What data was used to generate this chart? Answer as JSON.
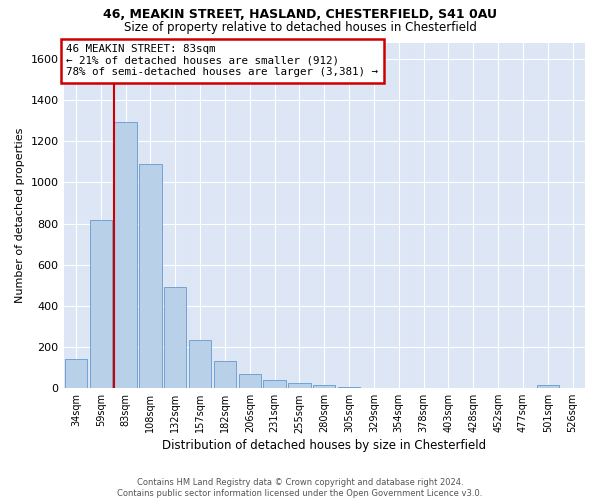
{
  "title1": "46, MEAKIN STREET, HASLAND, CHESTERFIELD, S41 0AU",
  "title2": "Size of property relative to detached houses in Chesterfield",
  "xlabel": "Distribution of detached houses by size in Chesterfield",
  "ylabel": "Number of detached properties",
  "footer1": "Contains HM Land Registry data © Crown copyright and database right 2024.",
  "footer2": "Contains public sector information licensed under the Open Government Licence v3.0.",
  "annotation_line1": "46 MEAKIN STREET: 83sqm",
  "annotation_line2": "← 21% of detached houses are smaller (912)",
  "annotation_line3": "78% of semi-detached houses are larger (3,381) →",
  "bar_color": "#b8d0e8",
  "bar_edge_color": "#6699cc",
  "vline_color": "#cc0000",
  "annotation_box_edgecolor": "#cc0000",
  "background_color": "#dce6f5",
  "grid_color": "#ffffff",
  "categories": [
    "34sqm",
    "59sqm",
    "83sqm",
    "108sqm",
    "132sqm",
    "157sqm",
    "182sqm",
    "206sqm",
    "231sqm",
    "255sqm",
    "280sqm",
    "305sqm",
    "329sqm",
    "354sqm",
    "378sqm",
    "403sqm",
    "428sqm",
    "452sqm",
    "477sqm",
    "501sqm",
    "526sqm"
  ],
  "values": [
    140,
    815,
    1295,
    1090,
    490,
    235,
    130,
    68,
    40,
    27,
    15,
    5,
    2,
    0,
    0,
    0,
    0,
    0,
    0,
    15,
    0
  ],
  "ylim": [
    0,
    1680
  ],
  "yticks": [
    0,
    200,
    400,
    600,
    800,
    1000,
    1200,
    1400,
    1600
  ],
  "vline_x_index": 2,
  "figsize": [
    6.0,
    5.0
  ],
  "dpi": 100
}
